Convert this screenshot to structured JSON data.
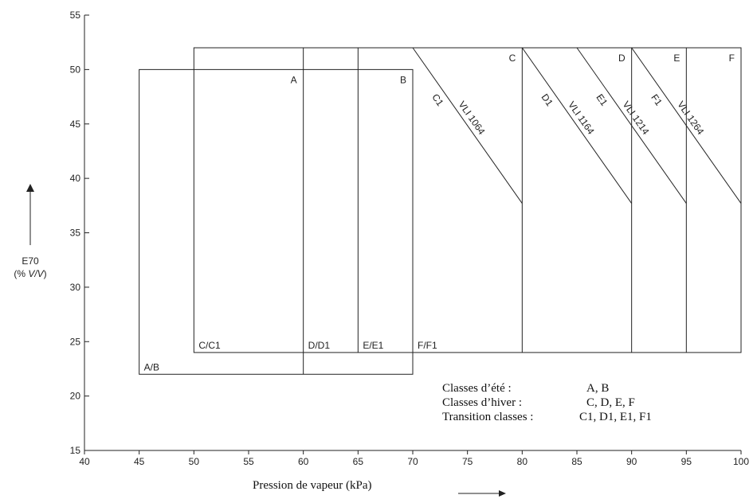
{
  "chart_data": {
    "type": "diagram",
    "xlabel": "Pression de vapeur (kPa)",
    "ylabel": "E70",
    "ylabel_unit_prefix": "(% ",
    "ylabel_unit_italic": "V/V",
    "ylabel_unit_suffix": ")",
    "xlim": [
      40,
      100
    ],
    "ylim": [
      15,
      55
    ],
    "xticks": [
      40,
      45,
      50,
      55,
      60,
      65,
      70,
      75,
      80,
      85,
      90,
      95,
      100
    ],
    "yticks": [
      15,
      20,
      25,
      30,
      35,
      40,
      45,
      50,
      55
    ],
    "rects": [
      {
        "x0": 45,
        "x1": 70,
        "y0": 22,
        "y1": 50
      },
      {
        "x0": 50,
        "x1": 100,
        "y0": 24,
        "y1": 52
      }
    ],
    "vlines": [
      {
        "x": 60,
        "y0": 22,
        "y1": 52
      },
      {
        "x": 65,
        "y0": 24,
        "y1": 52
      },
      {
        "x": 80,
        "y0": 24,
        "y1": 52
      },
      {
        "x": 90,
        "y0": 24,
        "y1": 52
      },
      {
        "x": 95,
        "y0": 24,
        "y1": 52
      }
    ],
    "diagonals": [
      {
        "label": "VLI 1064",
        "sublabel": "C1",
        "x0": 70,
        "y0": 52,
        "x1": 80,
        "y1": 37.7
      },
      {
        "label": "VLI 1164",
        "sublabel": "D1",
        "x0": 80,
        "y0": 52,
        "x1": 90,
        "y1": 37.7
      },
      {
        "label": "VLI 1214",
        "sublabel": "E1",
        "x0": 85,
        "y0": 52,
        "x1": 95,
        "y1": 37.7
      },
      {
        "label": "VLI 1264",
        "sublabel": "F1",
        "x0": 90,
        "y0": 52,
        "x1": 100,
        "y1": 37.7
      }
    ],
    "class_labels_top": [
      {
        "text": "A",
        "x": 60,
        "y": 50
      },
      {
        "text": "B",
        "x": 70,
        "y": 50
      },
      {
        "text": "C",
        "x": 80,
        "y": 52
      },
      {
        "text": "D",
        "x": 90,
        "y": 52
      },
      {
        "text": "E",
        "x": 95,
        "y": 52
      },
      {
        "text": "F",
        "x": 100,
        "y": 52
      }
    ],
    "class_labels_bottom": [
      {
        "text": "A/B",
        "x": 45,
        "y": 22
      },
      {
        "text": "C/C1",
        "x": 50,
        "y": 24
      },
      {
        "text": "D/D1",
        "x": 60,
        "y": 24
      },
      {
        "text": "E/E1",
        "x": 65,
        "y": 24
      },
      {
        "text": "F/F1",
        "x": 70,
        "y": 24
      }
    ],
    "legend": [
      {
        "label": "Classes d’été :",
        "value": "A, B"
      },
      {
        "label": "Classes d’hiver :",
        "value": "C, D, E, F"
      },
      {
        "label": "Transition classes :",
        "value": "C1, D1, E1, F1"
      }
    ]
  }
}
